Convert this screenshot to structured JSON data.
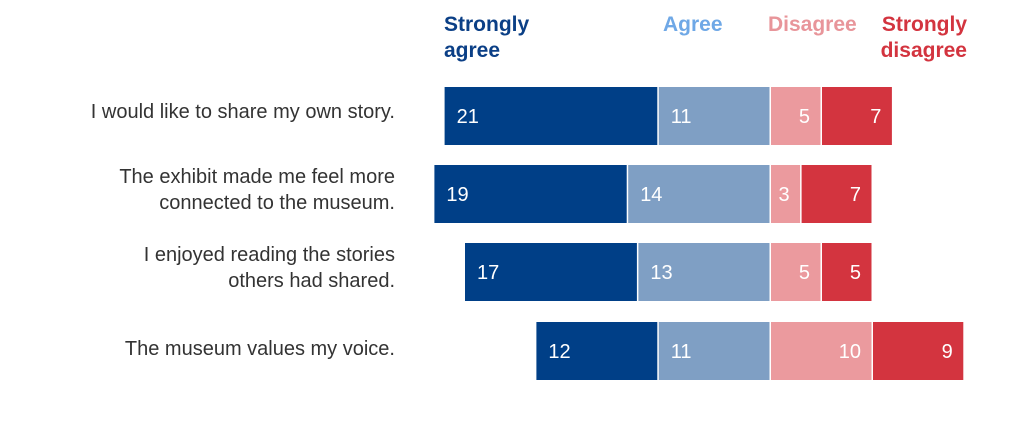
{
  "chart_data": {
    "type": "bar",
    "orientation": "horizontal",
    "stacked": true,
    "diverging": true,
    "categories": [
      "I would like to share my own story.",
      "The exhibit made me feel more connected to the museum.",
      "I enjoyed reading the stories others had shared.",
      "The museum values my voice."
    ],
    "series": [
      {
        "name": "Strongly agree",
        "color": "#003f87",
        "legend_color": "#0b3f86",
        "values": [
          21,
          19,
          17,
          12
        ]
      },
      {
        "name": "Agree",
        "color": "#7f9fc4",
        "legend_color": "#6fa8e6",
        "values": [
          11,
          14,
          13,
          11
        ]
      },
      {
        "name": "Disagree",
        "color": "#eb9a9e",
        "legend_color": "#e8959a",
        "values": [
          5,
          3,
          5,
          10
        ]
      },
      {
        "name": "Strongly disagree",
        "color": "#d3343f",
        "legend_color": "#d3343f",
        "values": [
          7,
          7,
          5,
          9
        ]
      }
    ],
    "legend_placement": "top",
    "grid": false,
    "data_labels": true
  }
}
